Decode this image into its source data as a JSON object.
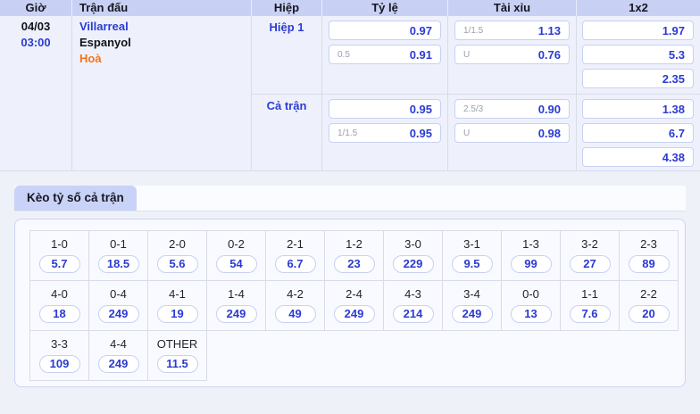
{
  "odds_table": {
    "headers": {
      "time": "Giờ",
      "match": "Trận đấu",
      "half": "Hiệp",
      "handicap": "Tỷ lệ",
      "over_under": "Tài xỉu",
      "one_x_two": "1x2"
    },
    "match": {
      "date": "04/03",
      "time": "03:00",
      "home": "Villarreal",
      "away": "Espanyol",
      "draw": "Hoà"
    },
    "sections": [
      {
        "label": "Hiệp 1",
        "ty_le": [
          {
            "handicap": "",
            "odds": "0.97"
          },
          {
            "handicap": "0.5",
            "odds": "0.91"
          }
        ],
        "tai_xiu": [
          {
            "line": "1/1.5",
            "odds": "1.13"
          },
          {
            "line": "U",
            "odds": "0.76"
          }
        ],
        "one_x_two": [
          "1.97",
          "5.3",
          "2.35"
        ]
      },
      {
        "label": "Cả trận",
        "ty_le": [
          {
            "handicap": "",
            "odds": "0.95"
          },
          {
            "handicap": "1/1.5",
            "odds": "0.95"
          }
        ],
        "tai_xiu": [
          {
            "line": "2.5/3",
            "odds": "0.90"
          },
          {
            "line": "U",
            "odds": "0.98"
          }
        ],
        "one_x_two": [
          "1.38",
          "6.7",
          "4.38"
        ]
      }
    ]
  },
  "score_section": {
    "tab_label": "Kèo tỷ số cả trận",
    "rows": [
      [
        {
          "score": "1-0",
          "odds": "5.7"
        },
        {
          "score": "0-1",
          "odds": "18.5"
        },
        {
          "score": "2-0",
          "odds": "5.6"
        },
        {
          "score": "0-2",
          "odds": "54"
        },
        {
          "score": "2-1",
          "odds": "6.7"
        },
        {
          "score": "1-2",
          "odds": "23"
        },
        {
          "score": "3-0",
          "odds": "229"
        },
        {
          "score": "3-1",
          "odds": "9.5"
        },
        {
          "score": "1-3",
          "odds": "99"
        },
        {
          "score": "3-2",
          "odds": "27"
        },
        {
          "score": "2-3",
          "odds": "89"
        }
      ],
      [
        {
          "score": "4-0",
          "odds": "18"
        },
        {
          "score": "0-4",
          "odds": "249"
        },
        {
          "score": "4-1",
          "odds": "19"
        },
        {
          "score": "1-4",
          "odds": "249"
        },
        {
          "score": "4-2",
          "odds": "49"
        },
        {
          "score": "2-4",
          "odds": "249"
        },
        {
          "score": "4-3",
          "odds": "214"
        },
        {
          "score": "3-4",
          "odds": "249"
        },
        {
          "score": "0-0",
          "odds": "13"
        },
        {
          "score": "1-1",
          "odds": "7.6"
        },
        {
          "score": "2-2",
          "odds": "20"
        }
      ],
      [
        {
          "score": "3-3",
          "odds": "109"
        },
        {
          "score": "4-4",
          "odds": "249"
        },
        {
          "score": "OTHER",
          "odds": "11.5"
        }
      ]
    ]
  },
  "colors": {
    "accent_blue": "#2b3bd2",
    "draw_orange": "#f97316",
    "header_bg": "#c8d0f3",
    "tab_bg": "#c9d2f7"
  }
}
